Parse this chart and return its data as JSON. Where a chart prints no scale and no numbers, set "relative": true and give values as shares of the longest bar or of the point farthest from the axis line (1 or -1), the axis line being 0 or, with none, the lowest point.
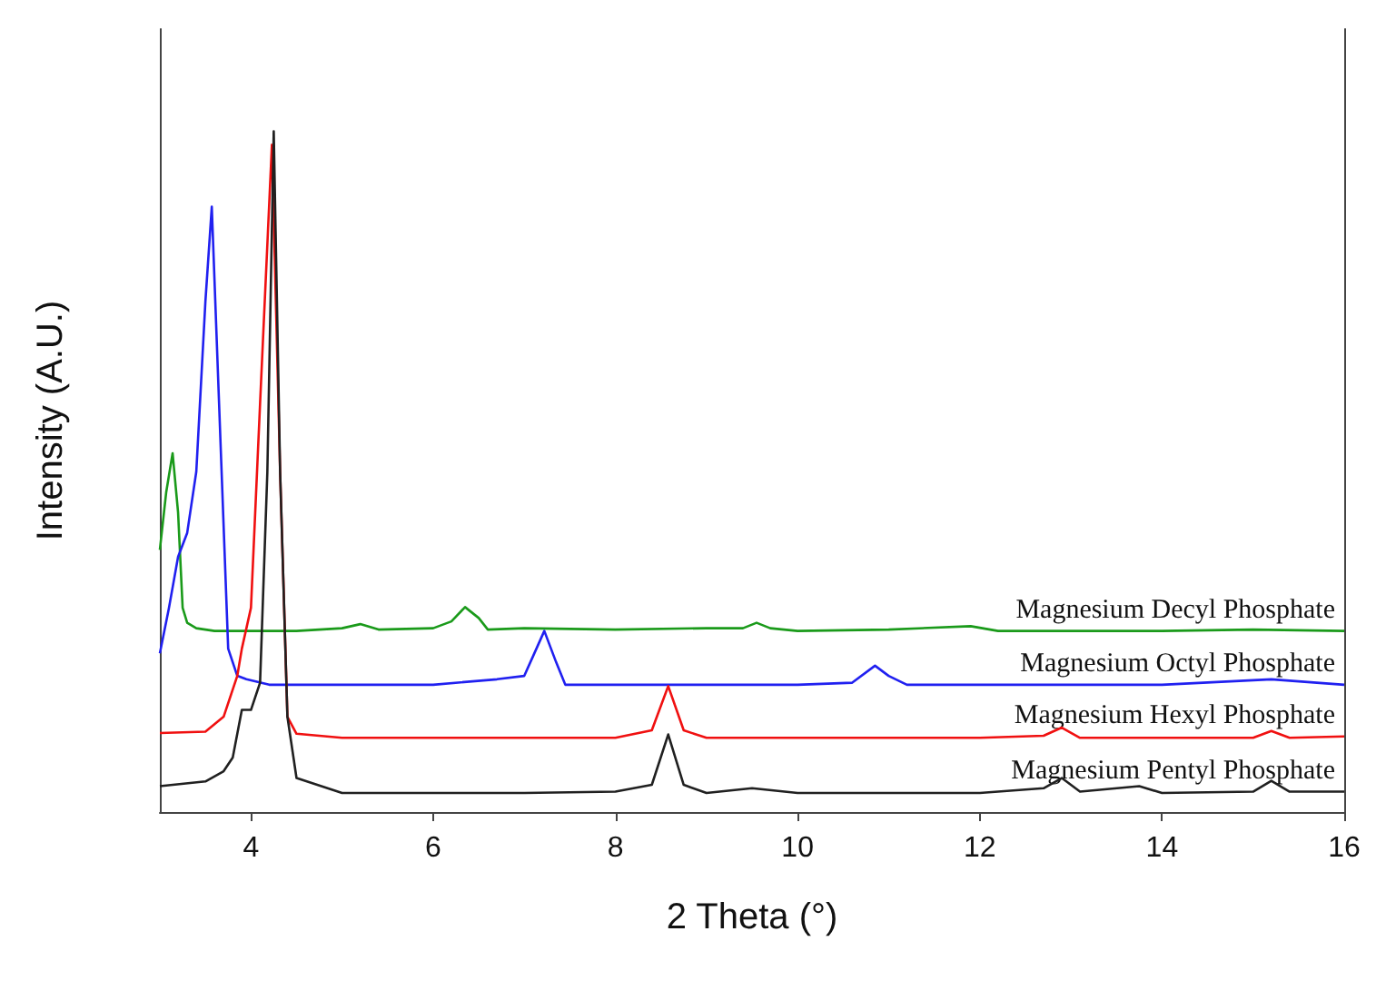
{
  "chart_data": {
    "type": "line",
    "relative": true,
    "xlabel": "2 Theta (°)",
    "ylabel": "Intensity (A.U.)",
    "xlim": [
      3,
      16
    ],
    "xticks": [
      4,
      6,
      8,
      10,
      12,
      14,
      16
    ],
    "grid": false,
    "legend": false,
    "marker": "none",
    "line_style": "solid",
    "series": [
      {
        "name": "Magnesium Decyl Phosphate",
        "color": "#1a9a1a",
        "x": [
          3,
          3.07,
          3.14,
          3.2,
          3.25,
          3.3,
          3.4,
          3.6,
          4,
          4.5,
          5,
          5.2,
          5.4,
          6,
          6.2,
          6.35,
          6.5,
          6.6,
          7,
          8,
          9,
          9.4,
          9.55,
          9.7,
          10,
          11,
          11.9,
          12.2,
          13,
          14,
          15,
          16
        ],
        "values": [
          0.385,
          0.47,
          0.527,
          0.44,
          0.3,
          0.278,
          0.27,
          0.266,
          0.266,
          0.266,
          0.27,
          0.276,
          0.268,
          0.27,
          0.28,
          0.301,
          0.285,
          0.268,
          0.27,
          0.268,
          0.27,
          0.27,
          0.278,
          0.27,
          0.266,
          0.268,
          0.273,
          0.266,
          0.266,
          0.266,
          0.268,
          0.266
        ]
      },
      {
        "name": "Magnesium Octyl Phosphate",
        "color": "#2020f0",
        "x": [
          3,
          3.1,
          3.2,
          3.3,
          3.4,
          3.5,
          3.57,
          3.65,
          3.75,
          3.85,
          3.95,
          4.2,
          5,
          6,
          6.7,
          7,
          7.1,
          7.22,
          7.35,
          7.45,
          8,
          9,
          10,
          10.6,
          10.85,
          11,
          11.2,
          12,
          13,
          14,
          15.2,
          16
        ],
        "values": [
          0.233,
          0.3,
          0.375,
          0.41,
          0.5,
          0.75,
          0.889,
          0.6,
          0.24,
          0.2,
          0.195,
          0.187,
          0.187,
          0.187,
          0.195,
          0.2,
          0.23,
          0.266,
          0.22,
          0.187,
          0.187,
          0.187,
          0.187,
          0.19,
          0.215,
          0.2,
          0.187,
          0.187,
          0.187,
          0.187,
          0.195,
          0.187
        ]
      },
      {
        "name": "Magnesium Hexyl Phosphate",
        "color": "#f01010",
        "x": [
          3,
          3.5,
          3.7,
          3.85,
          3.9,
          4.0,
          4.1,
          4.23,
          4.32,
          4.4,
          4.5,
          5,
          6,
          7,
          8,
          8.4,
          8.58,
          8.75,
          9,
          10,
          11,
          12,
          12.7,
          12.9,
          13.1,
          14,
          15,
          15.2,
          15.4,
          16
        ],
        "values": [
          0.116,
          0.118,
          0.14,
          0.2,
          0.24,
          0.3,
          0.6,
          0.98,
          0.5,
          0.14,
          0.115,
          0.109,
          0.109,
          0.109,
          0.109,
          0.12,
          0.185,
          0.12,
          0.109,
          0.109,
          0.109,
          0.109,
          0.112,
          0.124,
          0.109,
          0.109,
          0.109,
          0.119,
          0.109,
          0.111
        ]
      },
      {
        "name": "Magnesium Pentyl Phosphate",
        "color": "#202020",
        "x": [
          3,
          3.5,
          3.7,
          3.8,
          3.9,
          4.0,
          4.1,
          4.18,
          4.25,
          4.32,
          4.4,
          4.5,
          5,
          6,
          7,
          8,
          8.4,
          8.58,
          8.75,
          9,
          9.5,
          10,
          11,
          12,
          12.7,
          12.9,
          13.1,
          13.75,
          14,
          15,
          15.2,
          15.4,
          16
        ],
        "values": [
          0.038,
          0.045,
          0.06,
          0.08,
          0.15,
          0.15,
          0.19,
          0.5,
          1.0,
          0.5,
          0.14,
          0.05,
          0.028,
          0.028,
          0.028,
          0.03,
          0.04,
          0.114,
          0.04,
          0.028,
          0.035,
          0.028,
          0.028,
          0.028,
          0.035,
          0.05,
          0.03,
          0.038,
          0.028,
          0.03,
          0.046,
          0.03,
          0.03
        ]
      }
    ]
  }
}
